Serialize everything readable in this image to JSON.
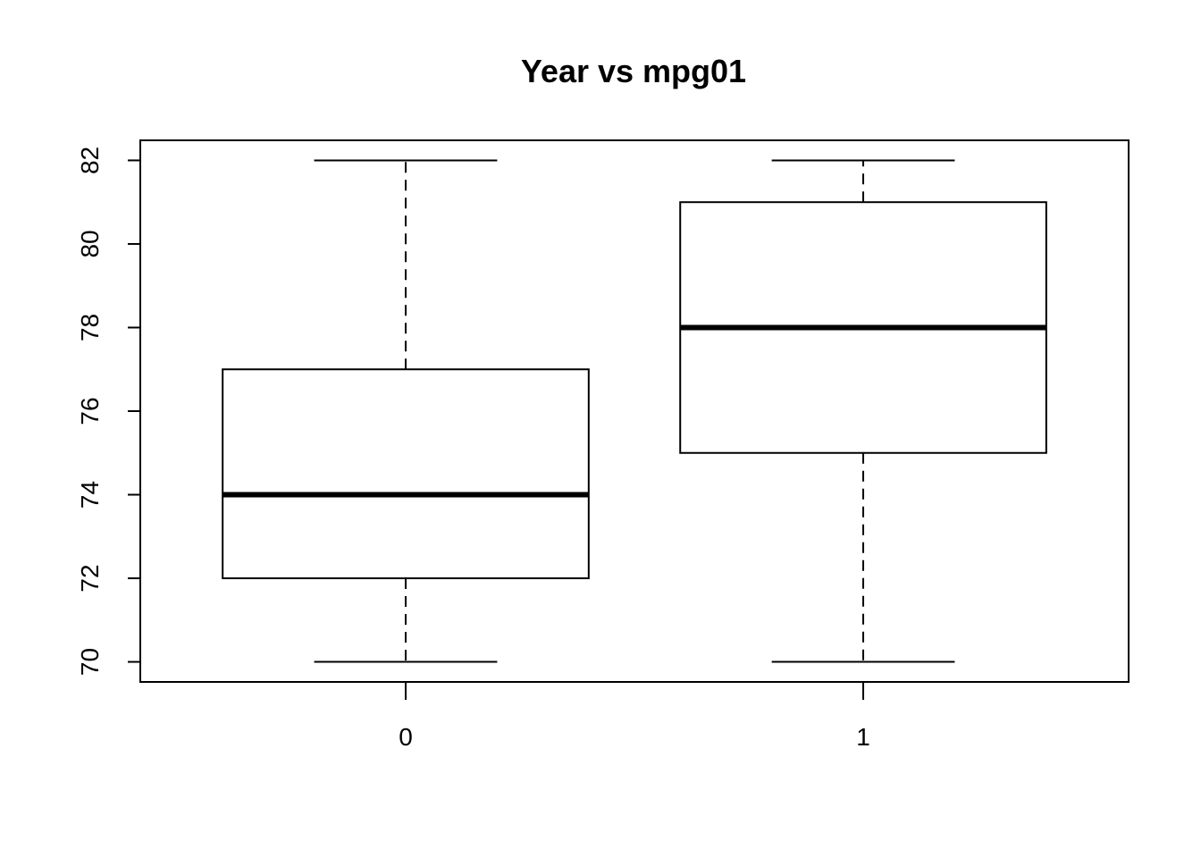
{
  "chart_data": {
    "type": "box",
    "title": "Year vs mpg01",
    "xlabel": "",
    "ylabel": "",
    "categories": [
      "0",
      "1"
    ],
    "boxes": [
      {
        "category": "0",
        "min": 70,
        "q1": 72,
        "median": 74,
        "q3": 77,
        "max": 82
      },
      {
        "category": "1",
        "min": 70,
        "q1": 75,
        "median": 78,
        "q3": 81,
        "max": 82
      }
    ],
    "yticks": [
      70,
      72,
      74,
      76,
      78,
      80,
      82
    ],
    "ylim": [
      69.52,
      82.48
    ],
    "grid": false,
    "legend": "none",
    "colors": {
      "stroke": "#000000",
      "fill": "#ffffff"
    }
  }
}
